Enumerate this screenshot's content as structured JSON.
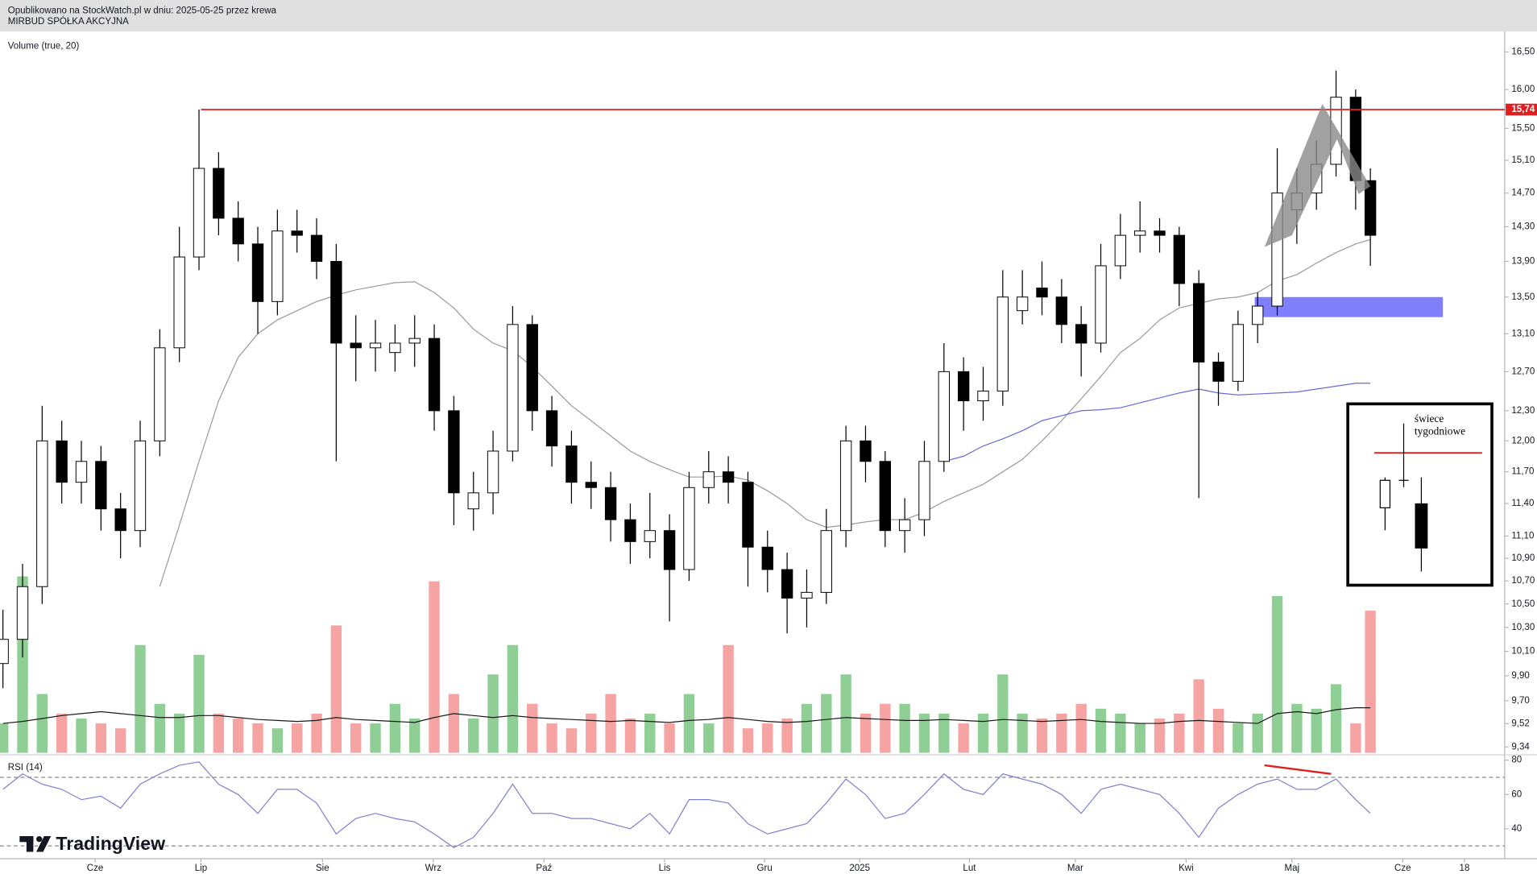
{
  "header": {
    "line1": "Opublikowano na StockWatch.pl w dniu: 2025-05-25 przez krewa",
    "line2": "MIRBUD SPÓŁKA AKCYJNA"
  },
  "inset": {
    "lines": [
      "świece",
      "tygodniowe"
    ]
  },
  "logo": {
    "text": "TradingView"
  },
  "chart_data": {
    "type": "candlestick",
    "log": true,
    "up_color": "#ffffff",
    "down_color": "#000000",
    "x": [
      0,
      4,
      8,
      12,
      16,
      20,
      24,
      28,
      32,
      36,
      40,
      44,
      48,
      52,
      56,
      60,
      64,
      68,
      72,
      76,
      80,
      84,
      88,
      92,
      96,
      100,
      104,
      108,
      112,
      116,
      120,
      124,
      128,
      132,
      136,
      140,
      144,
      148,
      152,
      156,
      160,
      164,
      168,
      172,
      176,
      180,
      184,
      188,
      192,
      196,
      200,
      204,
      208,
      212,
      216,
      220,
      224,
      228,
      232,
      236,
      240,
      244,
      248,
      252,
      256,
      260,
      264,
      268,
      272,
      276,
      279
    ],
    "xlim": [
      -0.6,
      306.4
    ],
    "xticks": [
      {
        "value": 18.8,
        "label": "Cze"
      },
      {
        "value": 40.4,
        "label": "Lip"
      },
      {
        "value": 65.2,
        "label": "Sie"
      },
      {
        "value": 87.8,
        "label": "Wrz"
      },
      {
        "value": 110.4,
        "label": "Paź"
      },
      {
        "value": 135,
        "label": "Lis"
      },
      {
        "value": 155.4,
        "label": "Gru"
      },
      {
        "value": 174.8,
        "label": "2025"
      },
      {
        "value": 197.2,
        "label": "Lut"
      },
      {
        "value": 218.8,
        "label": "Mar"
      },
      {
        "value": 241.4,
        "label": "Kwi"
      },
      {
        "value": 263,
        "label": "Maj"
      },
      {
        "value": 285.6,
        "label": "Cze"
      },
      {
        "value": 298.2,
        "label": "18"
      }
    ],
    "ylim": [
      9.28,
      16.74
    ],
    "yticks": [
      {
        "value": 16.5,
        "label": "16,50"
      },
      {
        "value": 16,
        "label": "16,00"
      },
      {
        "value": 15.5,
        "label": "15,50"
      },
      {
        "value": 15.1,
        "label": "15,10"
      },
      {
        "value": 14.7,
        "label": "14,70"
      },
      {
        "value": 14.3,
        "label": "14,30"
      },
      {
        "value": 13.9,
        "label": "13,90"
      },
      {
        "value": 13.5,
        "label": "13,50"
      },
      {
        "value": 13.1,
        "label": "13,10"
      },
      {
        "value": 12.7,
        "label": "12,70"
      },
      {
        "value": 12.3,
        "label": "12,30"
      },
      {
        "value": 12,
        "label": "12,00"
      },
      {
        "value": 11.7,
        "label": "11,70"
      },
      {
        "value": 11.4,
        "label": "11,40"
      },
      {
        "value": 11.1,
        "label": "11,10"
      },
      {
        "value": 10.9,
        "label": "10,90"
      },
      {
        "value": 10.7,
        "label": "10,70"
      },
      {
        "value": 10.5,
        "label": "10,50"
      },
      {
        "value": 10.3,
        "label": "10,30"
      },
      {
        "value": 10.1,
        "label": "10,10"
      },
      {
        "value": 9.9,
        "label": "9,90"
      },
      {
        "value": 9.7,
        "label": "9,70"
      },
      {
        "value": 9.52,
        "label": "9,52"
      },
      {
        "value": 9.34,
        "label": "9,34"
      }
    ],
    "open": [
      10.0,
      10.2,
      10.65,
      12.0,
      11.6,
      11.8,
      11.35,
      11.15,
      12.0,
      12.95,
      13.95,
      15.0,
      14.4,
      14.1,
      13.45,
      14.25,
      14.2,
      13.9,
      13.0,
      12.95,
      12.9,
      13.0,
      13.05,
      12.3,
      11.35,
      11.5,
      11.9,
      13.2,
      12.3,
      11.95,
      11.6,
      11.55,
      11.25,
      11.05,
      11.15,
      10.8,
      11.55,
      11.7,
      11.6,
      11.0,
      10.8,
      10.55,
      10.6,
      11.15,
      12.0,
      11.8,
      11.15,
      11.25,
      11.8,
      12.7,
      12.4,
      12.5,
      13.35,
      13.6,
      13.5,
      13.2,
      13.0,
      13.85,
      14.2,
      14.25,
      14.2,
      13.65,
      12.8,
      12.6,
      13.2,
      13.4,
      14.5,
      14.7,
      15.05,
      15.9,
      14.85
    ],
    "high": [
      10.45,
      10.85,
      12.35,
      12.2,
      12.0,
      11.95,
      11.5,
      12.2,
      13.15,
      14.3,
      15.74,
      15.2,
      14.6,
      14.3,
      14.5,
      14.5,
      14.4,
      14.1,
      13.3,
      13.25,
      13.2,
      13.3,
      13.2,
      12.45,
      11.7,
      12.1,
      13.4,
      13.3,
      12.45,
      12.1,
      11.8,
      11.7,
      11.4,
      11.5,
      11.3,
      11.7,
      11.9,
      11.85,
      11.7,
      11.15,
      10.95,
      10.8,
      11.35,
      12.15,
      12.15,
      11.9,
      11.45,
      12.0,
      13.0,
      12.85,
      12.75,
      13.8,
      13.8,
      13.9,
      13.7,
      13.4,
      14.1,
      14.45,
      14.6,
      14.4,
      14.3,
      13.8,
      12.9,
      13.35,
      13.55,
      15.25,
      15.0,
      15.35,
      16.25,
      16.0,
      15.0
    ],
    "low": [
      9.8,
      10.05,
      10.5,
      11.4,
      11.4,
      11.15,
      10.9,
      11.0,
      11.85,
      12.8,
      13.8,
      14.2,
      13.9,
      13.1,
      13.3,
      14.0,
      13.7,
      11.8,
      12.6,
      12.7,
      12.7,
      12.75,
      12.1,
      11.2,
      11.15,
      11.3,
      11.8,
      12.1,
      11.75,
      11.4,
      11.35,
      11.05,
      10.85,
      10.9,
      10.35,
      10.7,
      11.4,
      11.4,
      10.65,
      10.6,
      10.25,
      10.3,
      10.5,
      11.0,
      11.6,
      11.0,
      10.95,
      11.1,
      11.7,
      12.1,
      12.2,
      12.35,
      13.2,
      13.3,
      13.0,
      12.65,
      12.9,
      13.7,
      14.0,
      14.0,
      13.4,
      11.45,
      12.35,
      12.5,
      13.0,
      13.3,
      14.1,
      14.5,
      14.9,
      14.5,
      13.85
    ],
    "close": [
      10.2,
      10.65,
      12.0,
      11.6,
      11.8,
      11.35,
      11.15,
      12.0,
      12.95,
      13.95,
      15.0,
      14.4,
      14.1,
      13.45,
      14.25,
      14.2,
      13.9,
      13.0,
      12.95,
      13.0,
      13.0,
      13.05,
      12.3,
      11.5,
      11.5,
      11.9,
      13.2,
      12.3,
      11.95,
      11.6,
      11.55,
      11.25,
      11.05,
      11.15,
      10.8,
      11.55,
      11.7,
      11.6,
      11.0,
      10.8,
      10.55,
      10.6,
      11.15,
      12.0,
      11.8,
      11.15,
      11.25,
      11.8,
      12.7,
      12.4,
      12.5,
      13.5,
      13.5,
      13.5,
      13.2,
      13.0,
      13.85,
      14.2,
      14.25,
      14.2,
      13.65,
      12.8,
      12.6,
      13.2,
      13.4,
      14.7,
      14.7,
      15.05,
      15.9,
      14.85,
      14.2
    ],
    "volume": {
      "label": "Volume (true, 20)",
      "up_color": "#8fcf95",
      "down_color": "#f5a3a3",
      "ma_color": "#1a1a1a",
      "values": [
        30,
        180,
        60,
        40,
        35,
        30,
        25,
        110,
        50,
        40,
        100,
        40,
        35,
        30,
        25,
        30,
        40,
        130,
        30,
        30,
        50,
        35,
        175,
        60,
        35,
        80,
        110,
        50,
        30,
        25,
        40,
        60,
        35,
        40,
        30,
        60,
        30,
        110,
        25,
        30,
        35,
        50,
        60,
        80,
        40,
        50,
        50,
        40,
        40,
        30,
        40,
        80,
        40,
        35,
        40,
        50,
        45,
        40,
        30,
        35,
        40,
        75,
        45,
        30,
        40,
        160,
        50,
        45,
        70,
        30,
        145
      ],
      "ma": [
        30,
        32,
        35,
        38,
        40,
        42,
        40,
        38,
        36,
        36,
        38,
        38,
        36,
        34,
        33,
        32,
        33,
        36,
        34,
        33,
        32,
        31,
        36,
        40,
        38,
        36,
        38,
        36,
        35,
        34,
        33,
        32,
        33,
        32,
        31,
        33,
        34,
        36,
        34,
        32,
        31,
        32,
        34,
        36,
        35,
        34,
        33,
        33,
        34,
        33,
        32,
        34,
        33,
        32,
        33,
        34,
        32,
        31,
        30,
        30,
        32,
        33,
        32,
        31,
        30,
        40,
        42,
        40,
        44,
        46,
        46
      ]
    },
    "moving_averages": [
      {
        "color": "#9a9a9a",
        "values": [
          null,
          null,
          null,
          null,
          null,
          null,
          null,
          null,
          10.65,
          11.2,
          11.8,
          12.4,
          12.85,
          13.1,
          13.25,
          13.35,
          13.45,
          13.52,
          13.58,
          13.62,
          13.66,
          13.67,
          13.55,
          13.38,
          13.15,
          13.0,
          12.92,
          12.75,
          12.55,
          12.35,
          12.2,
          12.05,
          11.9,
          11.8,
          11.72,
          11.65,
          11.65,
          11.66,
          11.62,
          11.52,
          11.4,
          11.25,
          11.18,
          11.2,
          11.23,
          11.25,
          11.25,
          11.32,
          11.42,
          11.5,
          11.58,
          11.7,
          11.82,
          12.0,
          12.2,
          12.42,
          12.65,
          12.9,
          13.05,
          13.25,
          13.38,
          13.43,
          13.48,
          13.5,
          13.55,
          13.68,
          13.75,
          13.88,
          14.0,
          14.1,
          14.15
        ]
      },
      {
        "color": "#6a6ad6",
        "values": [
          null,
          null,
          null,
          null,
          null,
          null,
          null,
          null,
          null,
          null,
          null,
          null,
          null,
          null,
          null,
          null,
          null,
          null,
          null,
          null,
          null,
          null,
          null,
          null,
          null,
          null,
          null,
          null,
          null,
          null,
          null,
          null,
          null,
          null,
          null,
          null,
          null,
          null,
          null,
          null,
          null,
          null,
          null,
          null,
          null,
          null,
          null,
          null,
          11.8,
          11.85,
          11.95,
          12.02,
          12.1,
          12.2,
          12.25,
          12.3,
          12.31,
          12.33,
          12.38,
          12.43,
          12.48,
          12.52,
          12.48,
          12.46,
          12.47,
          12.48,
          12.49,
          12.52,
          12.55,
          12.58,
          12.58
        ]
      }
    ],
    "level": {
      "value": 15.74,
      "label": "15,74",
      "start_x": 40.4,
      "color": "#e02020"
    },
    "zone": {
      "low": 13.28,
      "high": 13.5,
      "x": [
        255.4,
        293.8
      ],
      "color": "#8080ff"
    },
    "rsi": {
      "label": "RSI (14)",
      "color": "#8080d0",
      "ylim": [
        26,
        82
      ],
      "yticks": [
        40,
        60,
        80
      ],
      "levels": [
        30,
        70
      ],
      "values": [
        63,
        72,
        66,
        63,
        57,
        59,
        52,
        66,
        72,
        77,
        79,
        66,
        60,
        49,
        63,
        63,
        55,
        37,
        46,
        49,
        46,
        44,
        37,
        29,
        35,
        49,
        66,
        49,
        49,
        46,
        46,
        43,
        40,
        49,
        37,
        57,
        57,
        55,
        43,
        37,
        40,
        43,
        55,
        69,
        60,
        46,
        49,
        60,
        72,
        63,
        60,
        72,
        69,
        66,
        60,
        49,
        63,
        66,
        63,
        60,
        49,
        35,
        52,
        60,
        66,
        69,
        63,
        63,
        69,
        57,
        49
      ],
      "divergence": {
        "x": [
          257.4,
          271
        ],
        "values": [
          77,
          72
        ],
        "color": "#e02020"
      }
    }
  }
}
